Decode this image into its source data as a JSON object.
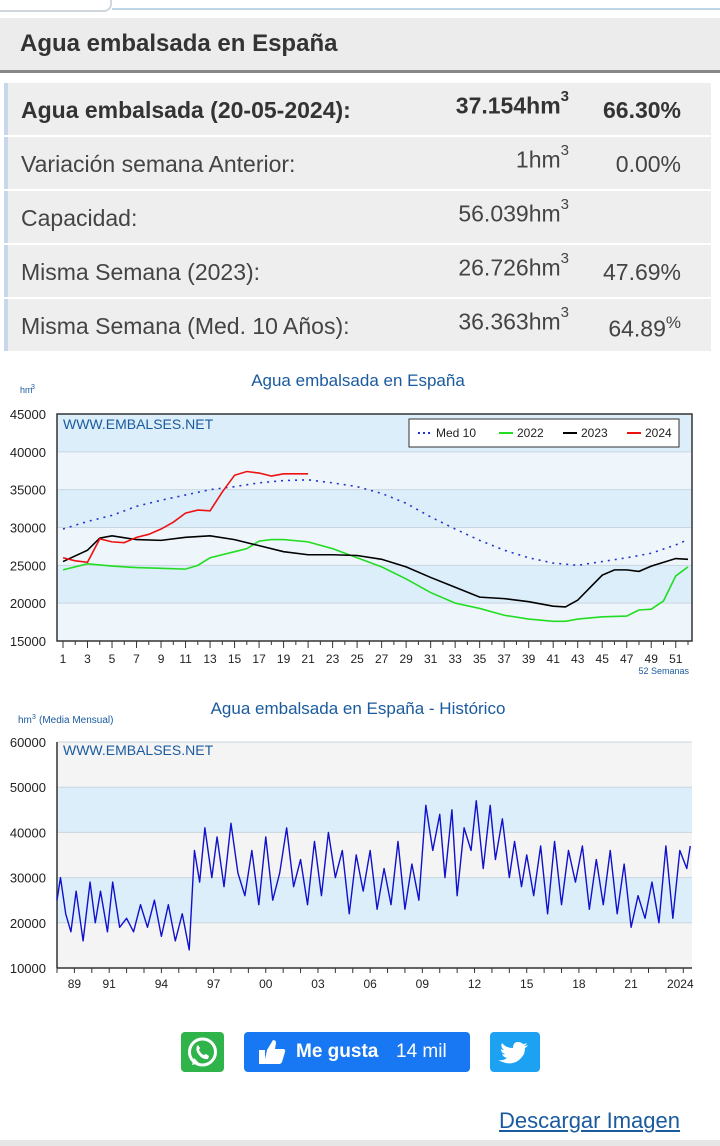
{
  "header": {
    "title": "Agua embalsada en España"
  },
  "stats": [
    {
      "label": "Agua embalsada (20-05-2024):",
      "value": "37.154",
      "unit": "hm",
      "exp": "3",
      "pct": "66.30%",
      "bold": true
    },
    {
      "label": "Variación semana Anterior:",
      "value": "1",
      "unit": "hm",
      "exp": "3",
      "pct": "0.00%"
    },
    {
      "label": "Capacidad:",
      "value": "56.039",
      "unit": "hm",
      "exp": "3",
      "pct": ""
    },
    {
      "label": "Misma Semana (2023):",
      "value": "26.726",
      "unit": "hm",
      "exp": "3",
      "pct": "47.69%"
    },
    {
      "label": "Misma Semana (Med. 10 Años):",
      "value": "36.363",
      "unit": "hm",
      "exp": "3",
      "pct": "64.89",
      "pct_sup": "%"
    }
  ],
  "chart_data": [
    {
      "type": "line",
      "title": "Agua embalsada en España",
      "watermark": "WWW.EMBALSES.NET",
      "ylabel": "hm",
      "ylabel_exp": "3",
      "xlabel_note": "52 Semanas",
      "ylim": [
        15000,
        45000
      ],
      "yticks": [
        15000,
        20000,
        25000,
        30000,
        35000,
        40000,
        45000
      ],
      "xlim": [
        1,
        52
      ],
      "xticks": [
        "1",
        "3",
        "5",
        "7",
        "9",
        "11",
        "13",
        "15",
        "17",
        "19",
        "21",
        "23",
        "25",
        "27",
        "29",
        "31",
        "33",
        "35",
        "37",
        "39",
        "41",
        "43",
        "45",
        "47",
        "49",
        "51"
      ],
      "legend_position": "top-right",
      "grid": true,
      "series": [
        {
          "name": "Med 10",
          "color": "#2233cc",
          "style": "dotted",
          "x": [
            1,
            3,
            5,
            7,
            9,
            11,
            13,
            15,
            17,
            19,
            21,
            23,
            25,
            27,
            29,
            31,
            33,
            35,
            37,
            39,
            41,
            43,
            45,
            47,
            49,
            51,
            52
          ],
          "values": [
            29800,
            30800,
            31600,
            32800,
            33600,
            34300,
            35000,
            35400,
            35900,
            36200,
            36300,
            35900,
            35400,
            34500,
            33200,
            31400,
            29800,
            28300,
            27000,
            26000,
            25300,
            25000,
            25500,
            26000,
            26600,
            27700,
            28400
          ]
        },
        {
          "name": "2022",
          "color": "#22dd22",
          "style": "solid",
          "x": [
            1,
            3,
            5,
            7,
            9,
            11,
            12,
            13,
            15,
            16,
            17,
            18,
            19,
            21,
            23,
            25,
            27,
            29,
            31,
            33,
            35,
            37,
            39,
            41,
            42,
            43,
            45,
            47,
            48,
            49,
            50,
            51,
            52
          ],
          "values": [
            24400,
            25200,
            24900,
            24700,
            24600,
            24500,
            25000,
            26000,
            26800,
            27200,
            28200,
            28400,
            28400,
            28100,
            27200,
            26000,
            24800,
            23200,
            21400,
            20000,
            19300,
            18400,
            17900,
            17600,
            17600,
            17900,
            18200,
            18300,
            19100,
            19200,
            20300,
            23600,
            24800
          ]
        },
        {
          "name": "2023",
          "color": "#000000",
          "style": "solid",
          "x": [
            1,
            3,
            4,
            5,
            7,
            9,
            11,
            13,
            15,
            17,
            19,
            21,
            23,
            25,
            27,
            29,
            31,
            33,
            35,
            37,
            39,
            41,
            42,
            43,
            45,
            46,
            47,
            48,
            49,
            51,
            52
          ],
          "values": [
            25500,
            27000,
            28600,
            28900,
            28400,
            28300,
            28700,
            28900,
            28400,
            27600,
            26800,
            26400,
            26400,
            26300,
            25800,
            24800,
            23400,
            22100,
            20800,
            20600,
            20200,
            19600,
            19500,
            20400,
            23700,
            24400,
            24400,
            24200,
            24900,
            25900,
            25800
          ]
        },
        {
          "name": "2024",
          "color": "#ee1111",
          "style": "solid",
          "x": [
            1,
            2,
            3,
            4,
            5,
            6,
            7,
            8,
            9,
            10,
            11,
            12,
            13,
            14,
            15,
            16,
            17,
            18,
            19,
            20,
            21
          ],
          "values": [
            26000,
            25600,
            25400,
            28500,
            28100,
            28000,
            28700,
            29100,
            29800,
            30700,
            31900,
            32300,
            32200,
            34700,
            36900,
            37400,
            37200,
            36800,
            37100,
            37100,
            37100
          ]
        }
      ]
    },
    {
      "type": "line",
      "title": "Agua embalsada en España - Histórico",
      "watermark": "WWW.EMBALSES.NET",
      "ylabel": "hm",
      "ylabel_exp": "3",
      "ylabel_note": "(Media Mensual)",
      "ylim": [
        10000,
        60000
      ],
      "yticks": [
        10000,
        20000,
        30000,
        40000,
        50000,
        60000
      ],
      "xticks": [
        "89",
        "91",
        "94",
        "97",
        "00",
        "03",
        "06",
        "09",
        "12",
        "15",
        "18",
        "21",
        "2024"
      ],
      "xtick_years": [
        1989,
        1991,
        1994,
        1997,
        2000,
        2003,
        2006,
        2009,
        2012,
        2015,
        2018,
        2021,
        2024
      ],
      "xlim": [
        1988,
        2024.5
      ],
      "grid": true,
      "series": [
        {
          "name": "",
          "color": "#1111cc",
          "style": "solid",
          "x": [
            1988,
            1988.2,
            1988.5,
            1988.8,
            1989.1,
            1989.5,
            1989.9,
            1990.2,
            1990.5,
            1990.9,
            1991.2,
            1991.6,
            1992,
            1992.4,
            1992.8,
            1993.2,
            1993.6,
            1994,
            1994.4,
            1994.8,
            1995.2,
            1995.6,
            1995.9,
            1996.2,
            1996.5,
            1996.9,
            1997.2,
            1997.6,
            1998,
            1998.4,
            1998.8,
            1999.2,
            1999.6,
            2000,
            2000.4,
            2000.8,
            2001.2,
            2001.6,
            2002,
            2002.4,
            2002.8,
            2003.2,
            2003.6,
            2004,
            2004.4,
            2004.8,
            2005.2,
            2005.6,
            2006,
            2006.4,
            2006.8,
            2007.2,
            2007.6,
            2008,
            2008.4,
            2008.8,
            2009.2,
            2009.6,
            2010,
            2010.3,
            2010.7,
            2011,
            2011.4,
            2011.8,
            2012.1,
            2012.5,
            2012.9,
            2013.2,
            2013.6,
            2014,
            2014.3,
            2014.7,
            2015,
            2015.4,
            2015.8,
            2016.2,
            2016.6,
            2017,
            2017.4,
            2017.8,
            2018.2,
            2018.6,
            2019,
            2019.4,
            2019.8,
            2020.2,
            2020.6,
            2021,
            2021.4,
            2021.8,
            2022.2,
            2022.6,
            2023,
            2023.4,
            2023.8,
            2024.2,
            2024.4
          ],
          "values": [
            25000,
            30000,
            22000,
            18000,
            27000,
            16000,
            29000,
            20000,
            27000,
            18000,
            29000,
            19000,
            21000,
            18000,
            24000,
            19000,
            25000,
            17000,
            24000,
            16000,
            22000,
            14000,
            36000,
            29000,
            41000,
            30000,
            39000,
            28000,
            42000,
            31000,
            26000,
            36000,
            24000,
            39000,
            25000,
            31000,
            41000,
            28000,
            34000,
            24000,
            38000,
            26000,
            40000,
            30000,
            36000,
            22000,
            35000,
            27000,
            36000,
            23000,
            32000,
            24000,
            38000,
            23000,
            33000,
            25000,
            46000,
            36000,
            44000,
            30000,
            45000,
            26000,
            41000,
            36000,
            47000,
            32000,
            46000,
            34000,
            43000,
            30000,
            38000,
            28000,
            35000,
            26000,
            37000,
            22000,
            38000,
            24000,
            36000,
            29000,
            37000,
            23000,
            34000,
            24000,
            36000,
            22000,
            33000,
            19000,
            26000,
            21000,
            29000,
            20000,
            37000,
            21000,
            36000,
            32000,
            37000
          ]
        }
      ]
    }
  ],
  "share": {
    "like_label": "Me gusta",
    "like_count": "14 mil",
    "whatsapp_icon": "whatsapp-icon",
    "twitter_icon": "twitter-icon",
    "like_icon": "thumbs-up-icon"
  },
  "download": {
    "label": "Descargar Imagen"
  }
}
